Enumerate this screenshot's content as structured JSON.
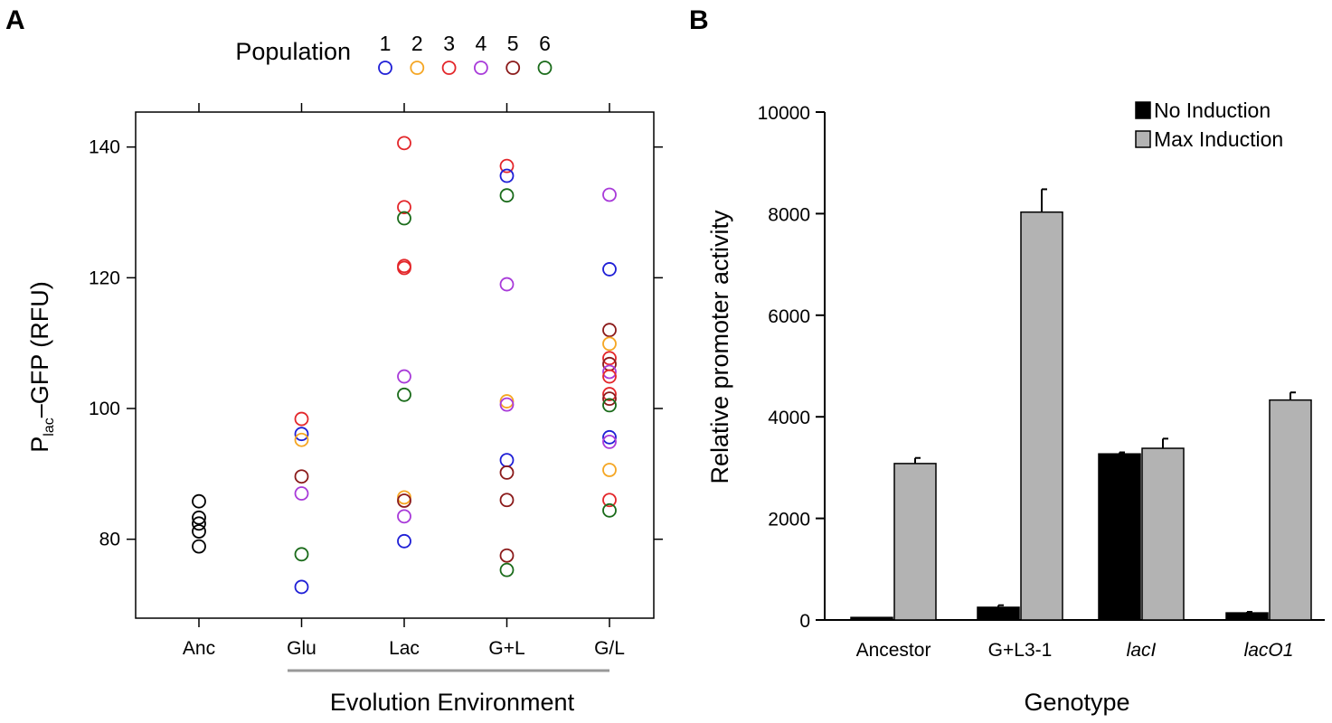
{
  "panels": {
    "a_label": "A",
    "b_label": "B"
  },
  "chart_data": [
    {
      "type": "scatter",
      "panel": "A",
      "xlabel": "Evolution Environment",
      "ylabel_main": "P",
      "ylabel_sub": "lac",
      "ylabel_rest": "–GFP (RFU)",
      "categories": [
        "Anc",
        "Glu",
        "Lac",
        "G+L",
        "G/L"
      ],
      "yticks": [
        80,
        100,
        120,
        140
      ],
      "ylim": [
        68,
        145
      ],
      "grid": false,
      "legend": {
        "title": "Population",
        "placement": "top",
        "entries": [
          {
            "label": "1",
            "color": "#1f1fd6"
          },
          {
            "label": "2",
            "color": "#f5a623"
          },
          {
            "label": "3",
            "color": "#e3262a"
          },
          {
            "label": "4",
            "color": "#a83ad9"
          },
          {
            "label": "5",
            "color": "#8b1a1a"
          },
          {
            "label": "6",
            "color": "#1a6b1a"
          }
        ]
      },
      "ancestor_color": "#000000",
      "points": [
        {
          "x": "Anc",
          "y": 85.8,
          "pop": "anc"
        },
        {
          "x": "Anc",
          "y": 83.3,
          "pop": "anc"
        },
        {
          "x": "Anc",
          "y": 82.4,
          "pop": "anc"
        },
        {
          "x": "Anc",
          "y": 81.2,
          "pop": "anc"
        },
        {
          "x": "Anc",
          "y": 78.9,
          "pop": "anc"
        },
        {
          "x": "Glu",
          "y": 98.4,
          "pop": "3"
        },
        {
          "x": "Glu",
          "y": 96.1,
          "pop": "1"
        },
        {
          "x": "Glu",
          "y": 95.2,
          "pop": "2"
        },
        {
          "x": "Glu",
          "y": 89.6,
          "pop": "5"
        },
        {
          "x": "Glu",
          "y": 87.0,
          "pop": "4"
        },
        {
          "x": "Glu",
          "y": 77.7,
          "pop": "6"
        },
        {
          "x": "Glu",
          "y": 72.7,
          "pop": "1"
        },
        {
          "x": "Lac",
          "y": 140.6,
          "pop": "3"
        },
        {
          "x": "Lac",
          "y": 130.8,
          "pop": "3"
        },
        {
          "x": "Lac",
          "y": 129.1,
          "pop": "6"
        },
        {
          "x": "Lac",
          "y": 121.8,
          "pop": "3"
        },
        {
          "x": "Lac",
          "y": 121.5,
          "pop": "3"
        },
        {
          "x": "Lac",
          "y": 104.9,
          "pop": "4"
        },
        {
          "x": "Lac",
          "y": 102.1,
          "pop": "6"
        },
        {
          "x": "Lac",
          "y": 86.4,
          "pop": "2"
        },
        {
          "x": "Lac",
          "y": 85.9,
          "pop": "5"
        },
        {
          "x": "Lac",
          "y": 83.5,
          "pop": "4"
        },
        {
          "x": "Lac",
          "y": 79.7,
          "pop": "1"
        },
        {
          "x": "G+L",
          "y": 137.1,
          "pop": "3"
        },
        {
          "x": "G+L",
          "y": 135.6,
          "pop": "1"
        },
        {
          "x": "G+L",
          "y": 132.6,
          "pop": "6"
        },
        {
          "x": "G+L",
          "y": 119.0,
          "pop": "4"
        },
        {
          "x": "G+L",
          "y": 101.1,
          "pop": "2"
        },
        {
          "x": "G+L",
          "y": 100.6,
          "pop": "4"
        },
        {
          "x": "G+L",
          "y": 92.1,
          "pop": "1"
        },
        {
          "x": "G+L",
          "y": 90.2,
          "pop": "5"
        },
        {
          "x": "G+L",
          "y": 86.0,
          "pop": "5"
        },
        {
          "x": "G+L",
          "y": 77.5,
          "pop": "5"
        },
        {
          "x": "G+L",
          "y": 75.3,
          "pop": "6"
        },
        {
          "x": "G/L",
          "y": 132.7,
          "pop": "4"
        },
        {
          "x": "G/L",
          "y": 121.3,
          "pop": "1"
        },
        {
          "x": "G/L",
          "y": 112.0,
          "pop": "5"
        },
        {
          "x": "G/L",
          "y": 109.9,
          "pop": "2"
        },
        {
          "x": "G/L",
          "y": 107.7,
          "pop": "3"
        },
        {
          "x": "G/L",
          "y": 106.8,
          "pop": "5"
        },
        {
          "x": "G/L",
          "y": 105.6,
          "pop": "4"
        },
        {
          "x": "G/L",
          "y": 104.9,
          "pop": "3"
        },
        {
          "x": "G/L",
          "y": 102.2,
          "pop": "3"
        },
        {
          "x": "G/L",
          "y": 101.5,
          "pop": "5"
        },
        {
          "x": "G/L",
          "y": 100.5,
          "pop": "6"
        },
        {
          "x": "G/L",
          "y": 95.6,
          "pop": "1"
        },
        {
          "x": "G/L",
          "y": 94.9,
          "pop": "4"
        },
        {
          "x": "G/L",
          "y": 90.6,
          "pop": "2"
        },
        {
          "x": "G/L",
          "y": 86.0,
          "pop": "3"
        },
        {
          "x": "G/L",
          "y": 84.4,
          "pop": "6"
        }
      ]
    },
    {
      "type": "bar",
      "panel": "B",
      "xlabel": "Genotype",
      "ylabel": "Relative promoter activity",
      "ylim": [
        0,
        10000
      ],
      "yticks": [
        0,
        2000,
        4000,
        6000,
        8000,
        10000
      ],
      "grid": false,
      "categories": [
        {
          "label": "Ancestor",
          "italic": false
        },
        {
          "label": "G+L3-1",
          "italic": false
        },
        {
          "label": "lacI",
          "italic": true
        },
        {
          "label": "lacO1",
          "italic": true
        }
      ],
      "legend_placement": "top-right",
      "series": [
        {
          "name": "No Induction",
          "color": "#000000",
          "values": [
            50,
            250,
            3270,
            140
          ],
          "errors": [
            0,
            40,
            30,
            20
          ]
        },
        {
          "name": "Max Induction",
          "color": "#b3b3b3",
          "values": [
            3080,
            8030,
            3380,
            4330
          ],
          "errors": [
            110,
            450,
            190,
            150
          ]
        }
      ]
    }
  ]
}
